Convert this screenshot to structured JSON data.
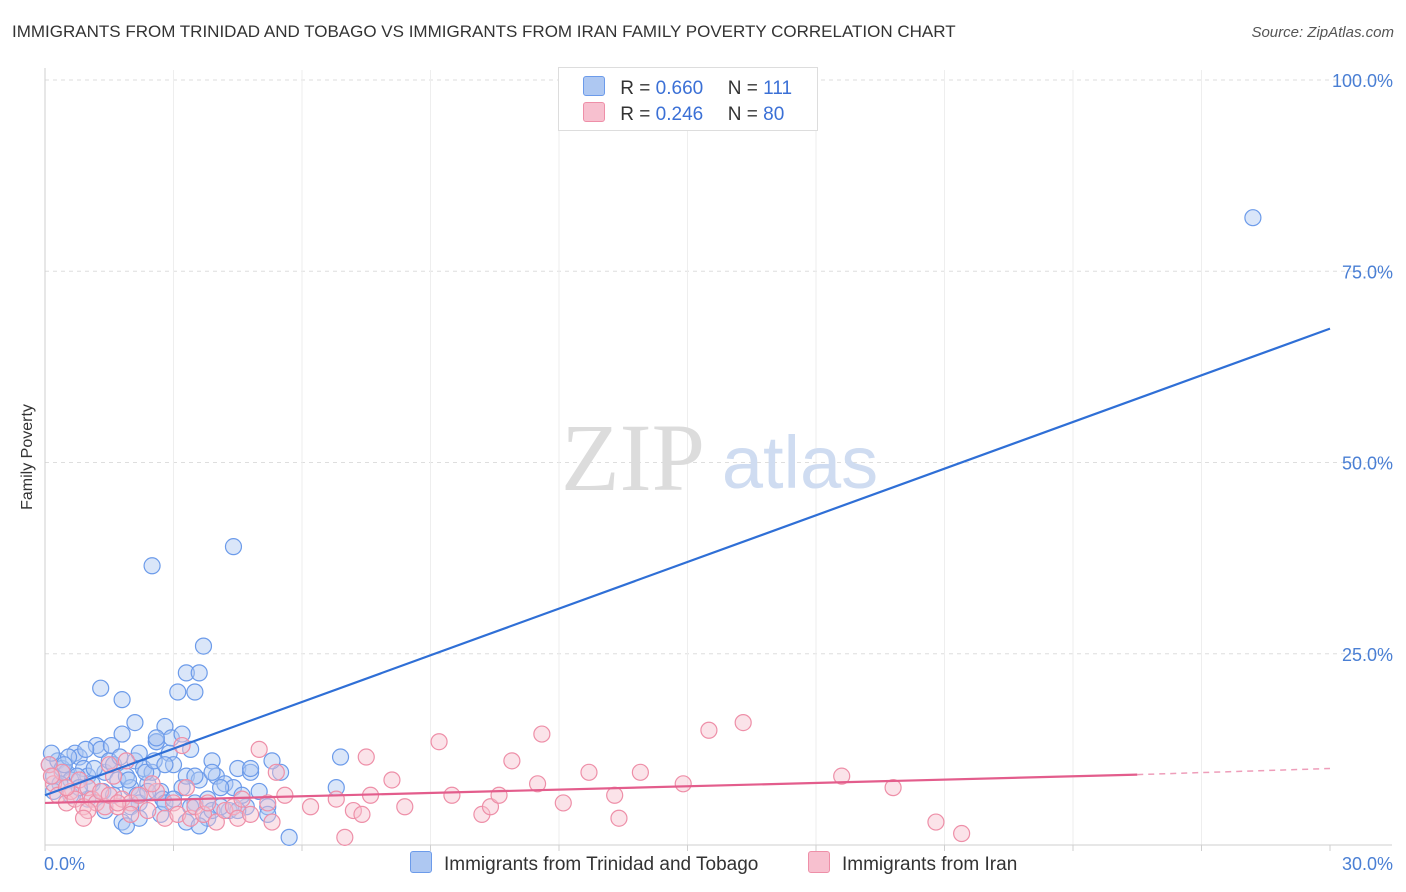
{
  "chart_data": {
    "type": "scatter",
    "title": "IMMIGRANTS FROM TRINIDAD AND TOBAGO VS IMMIGRANTS FROM IRAN FAMILY POVERTY CORRELATION CHART",
    "source": "Source: ZipAtlas.com",
    "xlabel": "",
    "ylabel": "Family Poverty",
    "xlim": [
      0,
      30
    ],
    "ylim": [
      0,
      105
    ],
    "x_tick_labels": [
      "0.0%",
      "30.0%"
    ],
    "y_tick_labels": [
      "100.0%",
      "75.0%",
      "50.0%",
      "25.0%"
    ],
    "y_tick_values": [
      100,
      75,
      50,
      25
    ],
    "grid": true,
    "watermark": {
      "zip": "ZIP",
      "atlas": "atlas"
    },
    "legend_stats": [
      {
        "r_label": "R =",
        "r_value": "0.660",
        "n_label": "N =",
        "n_value": "111"
      },
      {
        "r_label": "R =",
        "r_value": "0.246",
        "n_label": "N =",
        "n_value": "80"
      }
    ],
    "series": [
      {
        "name": "Immigrants from Trinidad and Tobago",
        "color": "#6c9bea",
        "fill": "#aec8f2",
        "line_color": "#2f6fd6",
        "trendline": {
          "x": [
            0,
            30
          ],
          "y": [
            6.5,
            67.5
          ]
        },
        "points": [
          [
            0.1,
            10.5
          ],
          [
            0.2,
            9.0
          ],
          [
            0.3,
            11.0
          ],
          [
            0.4,
            10.0
          ],
          [
            0.5,
            9.5
          ],
          [
            0.6,
            8.5
          ],
          [
            0.7,
            12.0
          ],
          [
            0.8,
            11.5
          ],
          [
            0.9,
            10.0
          ],
          [
            1.0,
            9.0
          ],
          [
            1.1,
            8.0
          ],
          [
            1.2,
            13.0
          ],
          [
            1.3,
            12.5
          ],
          [
            1.4,
            9.5
          ],
          [
            1.5,
            11.0
          ],
          [
            1.6,
            10.5
          ],
          [
            1.7,
            8.5
          ],
          [
            1.8,
            14.5
          ],
          [
            1.9,
            9.0
          ],
          [
            2.0,
            7.5
          ],
          [
            2.1,
            11.0
          ],
          [
            2.2,
            12.0
          ],
          [
            2.3,
            10.0
          ],
          [
            2.4,
            8.0
          ],
          [
            2.5,
            9.5
          ],
          [
            2.6,
            13.5
          ],
          [
            2.7,
            7.0
          ],
          [
            2.8,
            15.5
          ],
          [
            2.9,
            12.0
          ],
          [
            3.0,
            10.5
          ],
          [
            0.15,
            12.0
          ],
          [
            0.35,
            8.0
          ],
          [
            0.55,
            11.5
          ],
          [
            0.75,
            9.0
          ],
          [
            0.95,
            12.5
          ],
          [
            1.15,
            10.0
          ],
          [
            1.35,
            7.0
          ],
          [
            1.55,
            13.0
          ],
          [
            1.75,
            11.5
          ],
          [
            1.95,
            8.5
          ],
          [
            2.15,
            6.5
          ],
          [
            2.35,
            9.5
          ],
          [
            2.55,
            11.0
          ],
          [
            2.75,
            6.0
          ],
          [
            2.95,
            14.0
          ],
          [
            3.2,
            7.5
          ],
          [
            3.3,
            9.0
          ],
          [
            3.5,
            5.5
          ],
          [
            3.6,
            8.5
          ],
          [
            3.8,
            6.0
          ],
          [
            3.9,
            11.0
          ],
          [
            4.0,
            9.0
          ],
          [
            4.2,
            8.0
          ],
          [
            4.4,
            7.5
          ],
          [
            4.5,
            10.0
          ],
          [
            4.7,
            5.0
          ],
          [
            4.8,
            9.5
          ],
          [
            5.0,
            7.0
          ],
          [
            5.2,
            5.0
          ],
          [
            5.5,
            9.5
          ],
          [
            1.3,
            20.5
          ],
          [
            1.8,
            19.0
          ],
          [
            2.1,
            16.0
          ],
          [
            2.5,
            36.5
          ],
          [
            2.6,
            13.5
          ],
          [
            2.8,
            10.5
          ],
          [
            2.6,
            14.0
          ],
          [
            3.1,
            20.0
          ],
          [
            3.3,
            22.5
          ],
          [
            3.6,
            22.5
          ],
          [
            3.7,
            26.0
          ],
          [
            3.5,
            20.0
          ],
          [
            3.2,
            14.5
          ],
          [
            3.4,
            12.5
          ],
          [
            3.5,
            9.0
          ],
          [
            3.9,
            9.5
          ],
          [
            4.1,
            7.5
          ],
          [
            4.3,
            4.5
          ],
          [
            4.4,
            39.0
          ],
          [
            4.8,
            10.0
          ],
          [
            5.3,
            11.0
          ],
          [
            5.7,
            1.0
          ],
          [
            6.9,
            11.5
          ],
          [
            6.8,
            7.5
          ],
          [
            1.4,
            4.5
          ],
          [
            1.8,
            3.0
          ],
          [
            2.2,
            5.5
          ],
          [
            2.7,
            4.0
          ],
          [
            3.3,
            3.0
          ],
          [
            3.8,
            3.5
          ],
          [
            4.5,
            4.5
          ],
          [
            5.2,
            4.0
          ],
          [
            0.2,
            7.0
          ],
          [
            0.6,
            6.5
          ],
          [
            1.0,
            6.0
          ],
          [
            1.6,
            6.5
          ],
          [
            2.0,
            5.0
          ],
          [
            2.4,
            7.0
          ],
          [
            2.8,
            5.5
          ],
          [
            3.0,
            6.0
          ],
          [
            3.4,
            5.0
          ],
          [
            3.9,
            4.5
          ],
          [
            4.6,
            6.5
          ],
          [
            1.9,
            2.5
          ],
          [
            2.2,
            3.5
          ],
          [
            3.6,
            2.5
          ],
          [
            4.1,
            5.0
          ],
          [
            0.8,
            7.5
          ],
          [
            0.45,
            10.5
          ],
          [
            28.2,
            82.0
          ]
        ]
      },
      {
        "name": "Immigrants from Iran",
        "color": "#ee8fa8",
        "fill": "#f7c0cf",
        "line_color": "#e35d8c",
        "trendline": {
          "x": [
            0,
            25.5
          ],
          "y": [
            5.5,
            9.2
          ]
        },
        "trendline_dashed": {
          "x": [
            25.5,
            30
          ],
          "y": [
            9.2,
            10.0
          ]
        },
        "points": [
          [
            0.1,
            10.5
          ],
          [
            0.2,
            8.0
          ],
          [
            0.3,
            6.5
          ],
          [
            0.4,
            9.5
          ],
          [
            0.5,
            5.5
          ],
          [
            0.6,
            7.0
          ],
          [
            0.7,
            6.0
          ],
          [
            0.8,
            8.5
          ],
          [
            0.9,
            5.0
          ],
          [
            1.0,
            7.5
          ],
          [
            1.1,
            6.0
          ],
          [
            1.2,
            5.5
          ],
          [
            1.3,
            7.0
          ],
          [
            1.4,
            5.0
          ],
          [
            1.5,
            6.5
          ],
          [
            1.6,
            9.0
          ],
          [
            1.7,
            5.0
          ],
          [
            1.8,
            6.0
          ],
          [
            1.9,
            11.0
          ],
          [
            2.0,
            5.5
          ],
          [
            2.2,
            6.5
          ],
          [
            2.4,
            4.5
          ],
          [
            2.6,
            7.0
          ],
          [
            2.8,
            3.5
          ],
          [
            3.0,
            5.5
          ],
          [
            3.1,
            4.0
          ],
          [
            3.2,
            13.0
          ],
          [
            3.4,
            3.5
          ],
          [
            3.5,
            5.0
          ],
          [
            3.7,
            4.0
          ],
          [
            3.8,
            5.5
          ],
          [
            4.0,
            3.0
          ],
          [
            4.2,
            4.5
          ],
          [
            4.4,
            5.0
          ],
          [
            4.5,
            3.5
          ],
          [
            4.6,
            6.0
          ],
          [
            4.8,
            4.0
          ],
          [
            5.0,
            12.5
          ],
          [
            5.2,
            5.5
          ],
          [
            5.3,
            3.0
          ],
          [
            5.4,
            9.5
          ],
          [
            5.6,
            6.5
          ],
          [
            6.2,
            5.0
          ],
          [
            6.8,
            6.0
          ],
          [
            7.0,
            1.0
          ],
          [
            7.2,
            4.5
          ],
          [
            7.5,
            11.5
          ],
          [
            7.6,
            6.5
          ],
          [
            7.4,
            4.0
          ],
          [
            8.1,
            8.5
          ],
          [
            8.4,
            5.0
          ],
          [
            9.2,
            13.5
          ],
          [
            9.5,
            6.5
          ],
          [
            10.2,
            4.0
          ],
          [
            10.4,
            5.0
          ],
          [
            10.6,
            6.5
          ],
          [
            10.9,
            11.0
          ],
          [
            11.5,
            8.0
          ],
          [
            11.6,
            14.5
          ],
          [
            12.1,
            5.5
          ],
          [
            12.7,
            9.5
          ],
          [
            13.3,
            6.5
          ],
          [
            13.4,
            3.5
          ],
          [
            13.9,
            9.5
          ],
          [
            14.9,
            8.0
          ],
          [
            15.5,
            15.0
          ],
          [
            16.3,
            16.0
          ],
          [
            18.6,
            9.0
          ],
          [
            19.8,
            7.5
          ],
          [
            20.8,
            3.0
          ],
          [
            21.4,
            1.5
          ],
          [
            0.15,
            9.0
          ],
          [
            0.5,
            7.5
          ],
          [
            1.0,
            4.5
          ],
          [
            1.5,
            10.5
          ],
          [
            2.0,
            4.0
          ],
          [
            2.5,
            8.0
          ],
          [
            3.3,
            7.5
          ],
          [
            0.9,
            3.5
          ],
          [
            1.7,
            5.5
          ]
        ]
      }
    ]
  }
}
